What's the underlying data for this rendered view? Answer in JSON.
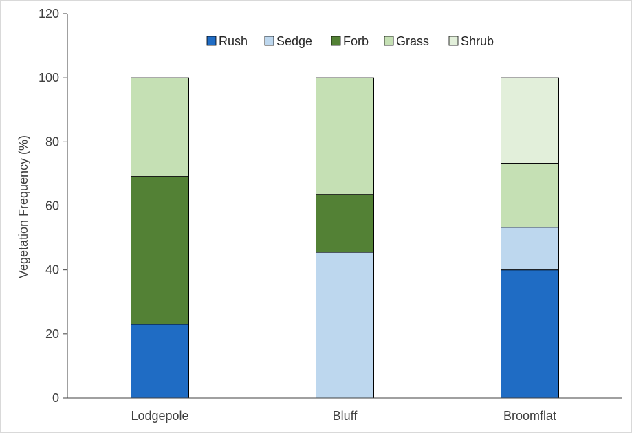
{
  "chart_data": {
    "type": "bar",
    "stacked": true,
    "categories": [
      "Lodgepole",
      "Bluff",
      "Broomflat"
    ],
    "series": [
      {
        "name": "Rush",
        "color": "#1f6cc4",
        "values": [
          23,
          0,
          40
        ]
      },
      {
        "name": "Sedge",
        "color": "#bdd7ee",
        "values": [
          0,
          45.5,
          13.3
        ]
      },
      {
        "name": "Forb",
        "color": "#538135",
        "values": [
          46.2,
          18.1,
          0
        ]
      },
      {
        "name": "Grass",
        "color": "#c5e0b4",
        "values": [
          30.8,
          36.4,
          20
        ]
      },
      {
        "name": "Shrub",
        "color": "#e2efda",
        "values": [
          0,
          0,
          26.7
        ]
      }
    ],
    "ylabel": "Vegetation Frequency (%)",
    "xlabel": "",
    "ylim": [
      0,
      120
    ],
    "yticks": [
      0,
      20,
      40,
      60,
      80,
      100,
      120
    ],
    "grid": false,
    "legend": "top-center"
  }
}
